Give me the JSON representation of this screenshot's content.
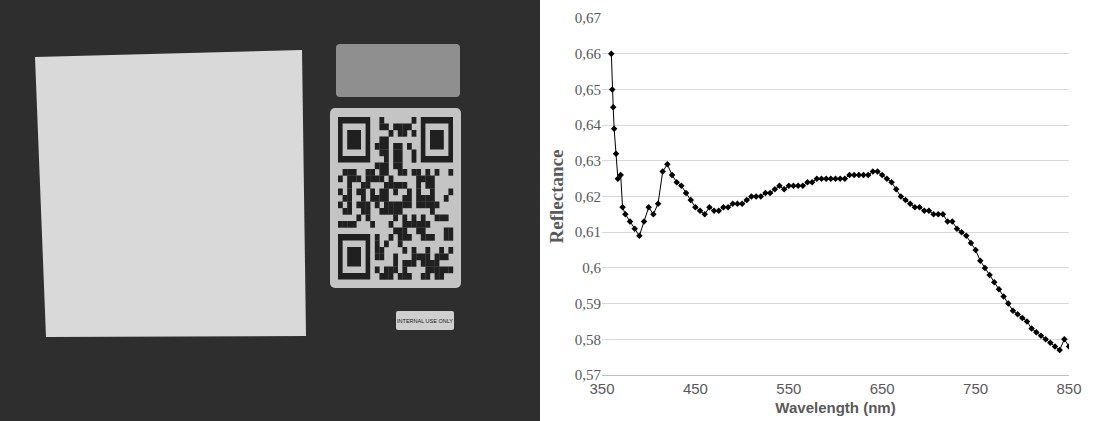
{
  "photo": {
    "label": "INTERNAL USE ONLY"
  },
  "chart_data": {
    "type": "line",
    "x_label": "Wavelength (nm)",
    "y_label": "Reflectance",
    "x": [
      360,
      361,
      362,
      363,
      365,
      367,
      370,
      372,
      375,
      380,
      385,
      390,
      395,
      400,
      405,
      410,
      415,
      420,
      425,
      430,
      435,
      440,
      445,
      450,
      455,
      460,
      465,
      470,
      475,
      480,
      485,
      490,
      495,
      500,
      505,
      510,
      515,
      520,
      525,
      530,
      535,
      540,
      545,
      550,
      555,
      560,
      565,
      570,
      575,
      580,
      585,
      590,
      595,
      600,
      605,
      610,
      615,
      620,
      625,
      630,
      635,
      640,
      645,
      650,
      655,
      660,
      665,
      670,
      675,
      680,
      685,
      690,
      695,
      700,
      705,
      710,
      715,
      720,
      725,
      730,
      735,
      740,
      745,
      750,
      755,
      760,
      765,
      770,
      775,
      780,
      785,
      790,
      795,
      800,
      805,
      810,
      815,
      820,
      825,
      830,
      835,
      840,
      845,
      850
    ],
    "series": [
      {
        "name": "Reflectance",
        "color": "#000000",
        "marker": "diamond",
        "line_style": "solid",
        "values": [
          0.66,
          0.65,
          0.645,
          0.639,
          0.632,
          0.625,
          0.626,
          0.617,
          0.615,
          0.613,
          0.611,
          0.609,
          0.613,
          0.617,
          0.615,
          0.618,
          0.627,
          0.629,
          0.626,
          0.624,
          0.623,
          0.621,
          0.619,
          0.617,
          0.616,
          0.615,
          0.617,
          0.616,
          0.616,
          0.617,
          0.617,
          0.618,
          0.618,
          0.618,
          0.619,
          0.62,
          0.62,
          0.62,
          0.621,
          0.621,
          0.622,
          0.623,
          0.622,
          0.623,
          0.623,
          0.623,
          0.623,
          0.624,
          0.624,
          0.625,
          0.625,
          0.625,
          0.625,
          0.625,
          0.625,
          0.625,
          0.626,
          0.626,
          0.626,
          0.626,
          0.626,
          0.627,
          0.627,
          0.626,
          0.625,
          0.624,
          0.622,
          0.62,
          0.619,
          0.618,
          0.617,
          0.617,
          0.616,
          0.616,
          0.615,
          0.615,
          0.615,
          0.613,
          0.613,
          0.611,
          0.61,
          0.609,
          0.607,
          0.605,
          0.602,
          0.6,
          0.598,
          0.596,
          0.594,
          0.592,
          0.59,
          0.588,
          0.587,
          0.586,
          0.585,
          0.583,
          0.582,
          0.581,
          0.58,
          0.579,
          0.578,
          0.577,
          0.58,
          0.578
        ]
      }
    ],
    "xlim": [
      350,
      850
    ],
    "xticks": [
      350,
      450,
      550,
      650,
      750,
      850
    ],
    "ylim": [
      0.57,
      0.67
    ],
    "yticks": [
      {
        "value": 0.57,
        "label": "0,57"
      },
      {
        "value": 0.58,
        "label": "0,58"
      },
      {
        "value": 0.59,
        "label": "0,59"
      },
      {
        "value": 0.6,
        "label": "0,6"
      },
      {
        "value": 0.61,
        "label": "0,61"
      },
      {
        "value": 0.62,
        "label": "0,62"
      },
      {
        "value": 0.63,
        "label": "0,63"
      },
      {
        "value": 0.64,
        "label": "0,64"
      },
      {
        "value": 0.65,
        "label": "0,65"
      },
      {
        "value": 0.66,
        "label": "0,66"
      },
      {
        "value": 0.67,
        "label": "0,67"
      }
    ],
    "grid": true
  }
}
